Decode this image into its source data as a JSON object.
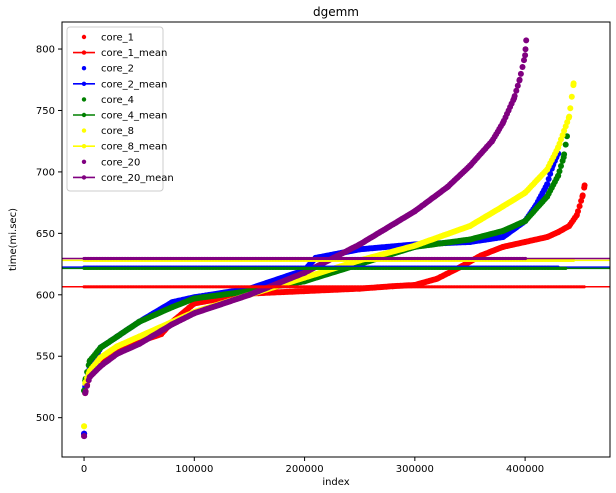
{
  "chart_data": {
    "type": "scatter",
    "title": "dgemm",
    "xlabel": "index",
    "ylabel": "time(mi.sec)",
    "xlim": [
      -20000,
      477000
    ],
    "ylim": [
      468,
      822
    ],
    "xticks": [
      0,
      100000,
      200000,
      300000,
      400000
    ],
    "xtick_labels": [
      "0",
      "100000",
      "200000",
      "300000",
      "400000"
    ],
    "yticks": [
      500,
      550,
      600,
      650,
      700,
      750,
      800
    ],
    "ytick_labels": [
      "500",
      "550",
      "600",
      "650",
      "700",
      "750",
      "800"
    ],
    "grid": false,
    "legend_position": "top-left",
    "series": [
      {
        "name": "core_1",
        "color": "#ff0000",
        "mean_name": "core_1_mean",
        "mean": 606.5,
        "n": 454000,
        "x": [
          0,
          1000,
          5000,
          15000,
          30000,
          50000,
          70000,
          80000,
          100000,
          150000,
          200000,
          250000,
          280000,
          300000,
          320000,
          340000,
          360000,
          380000,
          400000,
          420000,
          430000,
          440000,
          447000,
          452000,
          454000
        ],
        "y": [
          487,
          520,
          535,
          545,
          555,
          562,
          568,
          578,
          593,
          601,
          603,
          605,
          607,
          608,
          613,
          622,
          632,
          639,
          643,
          647,
          651,
          656,
          665,
          680,
          689
        ]
      },
      {
        "name": "core_2",
        "color": "#0000ff",
        "mean_name": "core_2_mean",
        "mean": 622.5,
        "n": 430000,
        "x": [
          0,
          1000,
          5000,
          15000,
          30000,
          50000,
          80000,
          100000,
          150000,
          200000,
          210000,
          250000,
          300000,
          350000,
          380000,
          400000,
          410000,
          420000,
          425000,
          430000
        ],
        "y": [
          487,
          525,
          540,
          557,
          566,
          578,
          594,
          598,
          605,
          620,
          630,
          637,
          641,
          643,
          647,
          660,
          673,
          690,
          705,
          715
        ]
      },
      {
        "name": "core_4",
        "color": "#008000",
        "mean_name": "core_4_mean",
        "mean": 621.5,
        "n": 438000,
        "x": [
          0,
          1000,
          5000,
          15000,
          30000,
          50000,
          80000,
          100000,
          150000,
          200000,
          250000,
          300000,
          350000,
          380000,
          400000,
          420000,
          430000,
          435000,
          438000
        ],
        "y": [
          522,
          530,
          546,
          557,
          566,
          578,
          590,
          597,
          603,
          611,
          625,
          639,
          645,
          652,
          660,
          680,
          697,
          712,
          729
        ]
      },
      {
        "name": "core_8",
        "color": "#ffff00",
        "mean_name": "core_8_mean",
        "mean": 628.0,
        "n": 444000,
        "x": [
          0,
          1000,
          5000,
          15000,
          30000,
          50000,
          80000,
          100000,
          150000,
          200000,
          250000,
          300000,
          350000,
          380000,
          400000,
          420000,
          430000,
          440000,
          444000
        ],
        "y": [
          493,
          528,
          538,
          549,
          558,
          566,
          578,
          586,
          600,
          614,
          628,
          640,
          656,
          672,
          683,
          702,
          720,
          745,
          772
        ]
      },
      {
        "name": "core_20",
        "color": "#800080",
        "mean_name": "core_20_mean",
        "mean": 629.5,
        "n": 401000,
        "x": [
          0,
          1000,
          5000,
          15000,
          30000,
          50000,
          80000,
          100000,
          150000,
          200000,
          250000,
          300000,
          330000,
          350000,
          370000,
          380000,
          390000,
          395000,
          400000,
          401000
        ],
        "y": [
          485,
          520,
          533,
          542,
          552,
          560,
          576,
          585,
          600,
          618,
          641,
          668,
          688,
          705,
          725,
          740,
          760,
          775,
          795,
          807
        ]
      }
    ]
  }
}
